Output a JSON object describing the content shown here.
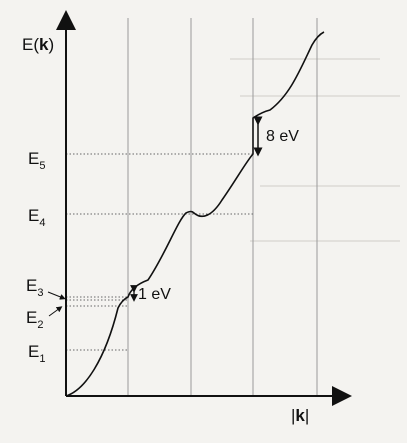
{
  "axes": {
    "y_label": "E(k)",
    "x_label": "|k|"
  },
  "energy_levels": [
    {
      "sub_main": "E",
      "sub": "1"
    },
    {
      "sub_main": "E",
      "sub": "2"
    },
    {
      "sub_main": "E",
      "sub": "3"
    },
    {
      "sub_main": "E",
      "sub": "4"
    },
    {
      "sub_main": "E",
      "sub": "5"
    }
  ],
  "gaps": {
    "small": "1 eV",
    "large": "8 eV"
  },
  "colors": {
    "ink": "#111111",
    "guide_lines": "#9a9a9a",
    "background": "#f4f3f0"
  }
}
